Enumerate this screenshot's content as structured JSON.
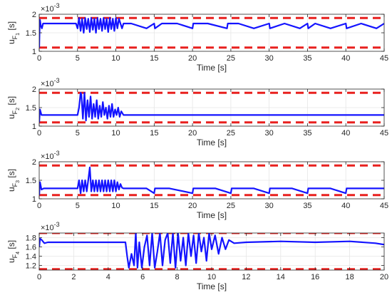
{
  "colors": {
    "signal": "#1414ff",
    "bound": "#e8201e",
    "axis": "#262626",
    "grid": "#e6e6e6"
  },
  "chart_data": [
    {
      "type": "line",
      "ylabel_main": "u",
      "ylabel_sub1": "F",
      "ylabel_sub2": "1",
      "ylabel_unit": "[s]",
      "xlabel": "Time [s]",
      "exponent_label": "×10",
      "exponent_power": "-3",
      "xlim": [
        0,
        45
      ],
      "ylim": [
        1.0,
        2.0
      ],
      "xticks": [
        0,
        5,
        10,
        15,
        20,
        25,
        30,
        35,
        40,
        45
      ],
      "xtick_labels": [
        "0",
        "5",
        "10",
        "15",
        "20",
        "25",
        "30",
        "35",
        "40",
        "45"
      ],
      "yticks": [
        1.0,
        1.5,
        2.0
      ],
      "ytick_labels": [
        "1",
        "1.5",
        "2"
      ],
      "grid": true,
      "bounds": {
        "lower": 1.1,
        "upper": 1.9
      },
      "series": [
        {
          "x": [
            0,
            0.05,
            0.1,
            0.2,
            0.35,
            0.5,
            1.0,
            2.0,
            3.0,
            4.0,
            4.8,
            5.0,
            5.2,
            5.4,
            5.6,
            5.8,
            6.0,
            6.2,
            6.4,
            6.6,
            6.8,
            7.0,
            7.2,
            7.4,
            7.6,
            7.8,
            8.0,
            8.2,
            8.4,
            8.6,
            8.8,
            9.0,
            9.2,
            9.4,
            9.6,
            9.8,
            10.0,
            10.2,
            10.4,
            10.6,
            10.8,
            11.0,
            12.0,
            14.0,
            15.0,
            15.1,
            16.0,
            18.0,
            20.0,
            20.1,
            22.0,
            24.5,
            24.6,
            26.0,
            28.0,
            30.0,
            30.1,
            32.0,
            34.0,
            35.0,
            35.1,
            36.0,
            38.0,
            40.0,
            40.1,
            42.0,
            44.0,
            45.0
          ],
          "y": [
            1.1,
            1.55,
            1.85,
            1.7,
            1.62,
            1.75,
            1.75,
            1.75,
            1.75,
            1.75,
            1.75,
            1.62,
            1.9,
            1.55,
            1.88,
            1.5,
            1.9,
            1.6,
            1.88,
            1.52,
            1.9,
            1.58,
            1.88,
            1.5,
            1.9,
            1.6,
            1.88,
            1.55,
            1.9,
            1.6,
            1.88,
            1.52,
            1.9,
            1.6,
            1.88,
            1.55,
            1.9,
            1.62,
            1.88,
            1.75,
            1.62,
            1.75,
            1.75,
            1.62,
            1.75,
            1.62,
            1.75,
            1.75,
            1.62,
            1.75,
            1.75,
            1.62,
            1.75,
            1.75,
            1.62,
            1.75,
            1.62,
            1.75,
            1.62,
            1.75,
            1.62,
            1.75,
            1.62,
            1.75,
            1.62,
            1.75,
            1.62,
            1.75
          ]
        }
      ]
    },
    {
      "type": "line",
      "ylabel_main": "u",
      "ylabel_sub1": "F",
      "ylabel_sub2": "2",
      "ylabel_unit": "[s]",
      "xlabel": "Time [s]",
      "exponent_label": "×10",
      "exponent_power": "-3",
      "xlim": [
        0,
        45
      ],
      "ylim": [
        1.0,
        2.0
      ],
      "xticks": [
        0,
        5,
        10,
        15,
        20,
        25,
        30,
        35,
        40,
        45
      ],
      "xtick_labels": [
        "0",
        "5",
        "10",
        "15",
        "20",
        "25",
        "30",
        "35",
        "40",
        "45"
      ],
      "yticks": [
        1.0,
        1.5,
        2.0
      ],
      "ytick_labels": [
        "1",
        "1.5",
        "2"
      ],
      "grid": true,
      "bounds": {
        "lower": 1.1,
        "upper": 1.9
      },
      "series": [
        {
          "x": [
            0,
            0.1,
            0.3,
            0.6,
            1.0,
            2.0,
            3.0,
            4.0,
            5.0,
            5.2,
            5.4,
            5.5,
            5.7,
            5.9,
            6.1,
            6.3,
            6.5,
            6.7,
            6.9,
            7.1,
            7.3,
            7.5,
            7.7,
            7.9,
            8.1,
            8.3,
            8.5,
            8.7,
            8.9,
            9.1,
            9.3,
            9.5,
            9.7,
            9.9,
            10.1,
            10.3,
            10.5,
            10.7,
            11.0,
            12.0,
            15.0,
            20.0,
            25.0,
            30.0,
            35.0,
            40.0,
            45.0
          ],
          "y": [
            1.1,
            1.45,
            1.3,
            1.3,
            1.3,
            1.3,
            1.3,
            1.3,
            1.3,
            1.5,
            1.9,
            1.85,
            1.2,
            1.9,
            1.15,
            1.7,
            1.25,
            1.8,
            1.2,
            1.6,
            1.25,
            1.7,
            1.2,
            1.55,
            1.25,
            1.65,
            1.3,
            1.5,
            1.2,
            1.55,
            1.25,
            1.6,
            1.25,
            1.45,
            1.3,
            1.5,
            1.25,
            1.4,
            1.3,
            1.3,
            1.3,
            1.3,
            1.3,
            1.3,
            1.3,
            1.3,
            1.3
          ]
        }
      ]
    },
    {
      "type": "line",
      "ylabel_main": "u",
      "ylabel_sub1": "F",
      "ylabel_sub2": "3",
      "ylabel_unit": "[s]",
      "xlabel": "Time [s]",
      "exponent_label": "×10",
      "exponent_power": "-3",
      "xlim": [
        0,
        45
      ],
      "ylim": [
        1.0,
        2.0
      ],
      "xticks": [
        0,
        5,
        10,
        15,
        20,
        25,
        30,
        35,
        40,
        45
      ],
      "xtick_labels": [
        "0",
        "5",
        "10",
        "15",
        "20",
        "25",
        "30",
        "35",
        "40",
        "45"
      ],
      "yticks": [
        1.0,
        1.5,
        2.0
      ],
      "ytick_labels": [
        "1",
        "1.5",
        "2"
      ],
      "grid": true,
      "bounds": {
        "lower": 1.1,
        "upper": 1.9
      },
      "series": [
        {
          "x": [
            0,
            0.1,
            0.3,
            0.6,
            1.0,
            2.0,
            3.0,
            4.0,
            5.0,
            5.2,
            5.4,
            5.6,
            5.8,
            6.0,
            6.2,
            6.4,
            6.6,
            6.8,
            7.0,
            7.2,
            7.4,
            7.6,
            7.8,
            8.0,
            8.2,
            8.4,
            8.6,
            8.8,
            9.0,
            9.2,
            9.4,
            9.6,
            9.8,
            10.0,
            10.2,
            10.4,
            10.6,
            10.8,
            11.0,
            12.0,
            14.0,
            15.0,
            15.1,
            17.0,
            20.0,
            20.1,
            23.0,
            25.0,
            25.1,
            28.0,
            30.0,
            30.1,
            33.0,
            35.0,
            35.1,
            38.0,
            40.0,
            40.1,
            43.0,
            45.0
          ],
          "y": [
            1.1,
            1.45,
            1.25,
            1.28,
            1.28,
            1.28,
            1.28,
            1.28,
            1.28,
            1.5,
            1.15,
            1.5,
            1.2,
            1.5,
            1.2,
            1.5,
            1.85,
            1.2,
            1.5,
            1.2,
            1.5,
            1.2,
            1.5,
            1.2,
            1.5,
            1.2,
            1.5,
            1.2,
            1.5,
            1.2,
            1.5,
            1.2,
            1.5,
            1.2,
            1.45,
            1.25,
            1.4,
            1.3,
            1.28,
            1.28,
            1.28,
            1.15,
            1.28,
            1.28,
            1.15,
            1.28,
            1.28,
            1.15,
            1.28,
            1.28,
            1.15,
            1.28,
            1.28,
            1.15,
            1.28,
            1.28,
            1.15,
            1.28,
            1.28,
            1.28
          ]
        }
      ]
    },
    {
      "type": "line",
      "ylabel_main": "u",
      "ylabel_sub1": "F",
      "ylabel_sub2": "4",
      "ylabel_unit": "[s]",
      "xlabel": "Time [s]",
      "exponent_label": "×10",
      "exponent_power": "-3",
      "xlim": [
        0,
        20
      ],
      "ylim": [
        1.1,
        1.9
      ],
      "xticks": [
        0,
        2,
        4,
        6,
        8,
        10,
        12,
        14,
        16,
        18,
        20
      ],
      "xtick_labels": [
        "0",
        "2",
        "4",
        "6",
        "8",
        "10",
        "12",
        "14",
        "16",
        "18",
        "20"
      ],
      "yticks": [
        1.2,
        1.4,
        1.6,
        1.8
      ],
      "ytick_labels": [
        "1.2",
        "1.4",
        "1.6",
        "1.8"
      ],
      "grid": true,
      "bounds": {
        "lower": 1.12,
        "upper": 1.9
      },
      "series": [
        {
          "x": [
            0,
            0.05,
            0.15,
            0.3,
            0.5,
            1.0,
            2.0,
            3.0,
            4.0,
            4.8,
            5.0,
            5.1,
            5.2,
            5.35,
            5.5,
            5.6,
            5.7,
            5.8,
            5.95,
            6.1,
            6.25,
            6.4,
            6.55,
            6.7,
            6.85,
            7.0,
            7.15,
            7.3,
            7.45,
            7.6,
            7.75,
            7.9,
            8.05,
            8.2,
            8.35,
            8.5,
            8.65,
            8.8,
            8.95,
            9.1,
            9.25,
            9.4,
            9.55,
            9.7,
            9.85,
            10.0,
            10.2,
            10.4,
            10.6,
            10.8,
            11.0,
            11.3,
            12.0,
            14.0,
            16.0,
            18.0,
            19.5,
            20.0
          ],
          "y": [
            1.6,
            1.78,
            1.75,
            1.68,
            1.7,
            1.7,
            1.7,
            1.7,
            1.7,
            1.7,
            1.7,
            1.4,
            1.15,
            1.45,
            1.2,
            1.9,
            1.15,
            1.7,
            1.15,
            1.6,
            1.85,
            1.2,
            1.9,
            1.15,
            1.5,
            1.9,
            1.2,
            1.75,
            1.9,
            1.25,
            1.9,
            1.15,
            1.9,
            1.3,
            1.8,
            1.2,
            1.9,
            1.4,
            1.85,
            1.25,
            1.9,
            1.5,
            1.8,
            1.3,
            1.9,
            1.55,
            1.85,
            1.45,
            1.8,
            1.55,
            1.75,
            1.68,
            1.7,
            1.72,
            1.7,
            1.72,
            1.68,
            1.65
          ]
        }
      ]
    }
  ]
}
